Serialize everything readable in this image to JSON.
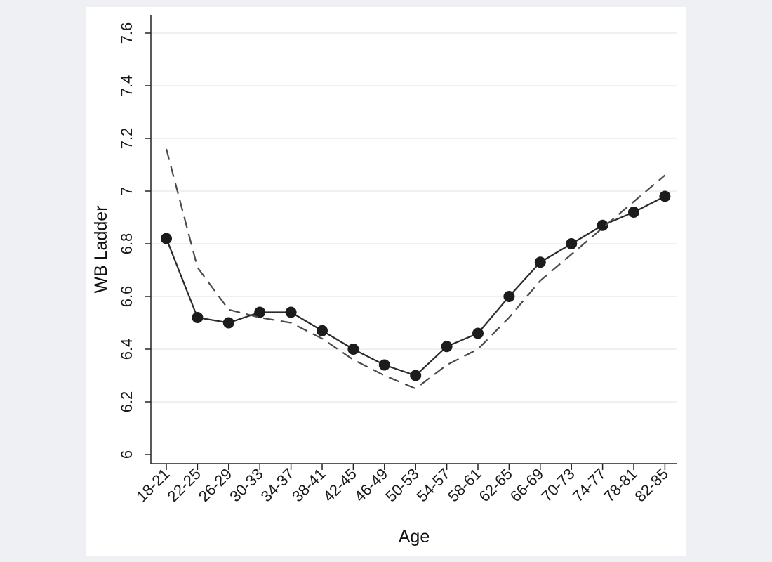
{
  "chart_data": {
    "type": "line",
    "title": "",
    "xlabel": "Age",
    "ylabel": "WB Ladder",
    "ylim": [
      6,
      7.6
    ],
    "yticks": [
      6,
      6.2,
      6.4,
      6.6,
      6.8,
      7,
      7.2,
      7.4,
      7.6
    ],
    "ytick_labels": [
      "6",
      "6.2",
      "6.4",
      "6.6",
      "6.8",
      "7",
      "7.2",
      "7.4",
      "7.6"
    ],
    "grid": true,
    "categories": [
      "18-21",
      "22-25",
      "26-29",
      "30-33",
      "34-37",
      "38-41",
      "42-45",
      "46-49",
      "50-53",
      "54-57",
      "58-61",
      "62-65",
      "66-69",
      "70-73",
      "74-77",
      "78-81",
      "82-85"
    ],
    "series": [
      {
        "name": "observed",
        "style": "solid-markers",
        "values": [
          6.82,
          6.52,
          6.5,
          6.54,
          6.54,
          6.47,
          6.4,
          6.34,
          6.3,
          6.41,
          6.46,
          6.6,
          6.73,
          6.8,
          6.87,
          6.92,
          6.98
        ]
      },
      {
        "name": "fitted",
        "style": "dashed",
        "values": [
          7.16,
          6.71,
          6.55,
          6.52,
          6.5,
          6.44,
          6.36,
          6.3,
          6.25,
          6.34,
          6.4,
          6.52,
          6.66,
          6.76,
          6.86,
          6.96,
          7.06
        ]
      }
    ],
    "colors": {
      "line": "#2a2a2a",
      "marker": "#1c1c1c",
      "grid": "#ebebeb",
      "axis": "#222222"
    }
  }
}
